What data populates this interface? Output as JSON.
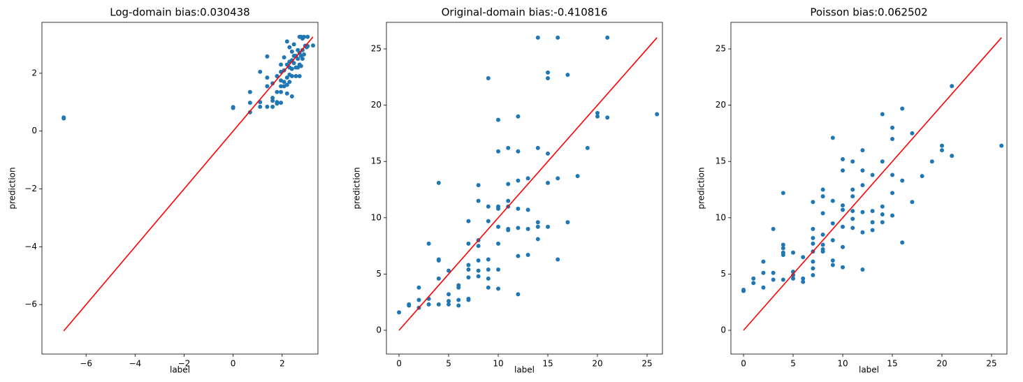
{
  "chart_data": [
    {
      "type": "scatter",
      "title": "Log-domain bias:0.030438",
      "x_label": "label",
      "y_label": "prediction",
      "color": "#1f77b4",
      "x": [
        -6.91,
        -6.91,
        0,
        0,
        0.69,
        0.69,
        0.69,
        1.1,
        1.1,
        1.1,
        1.39,
        1.39,
        1.39,
        1.39,
        1.61,
        1.61,
        1.61,
        1.61,
        1.79,
        1.79,
        1.79,
        1.79,
        1.95,
        1.95,
        1.95,
        1.95,
        1.95,
        1.95,
        2.08,
        2.08,
        2.08,
        2.08,
        2.2,
        2.2,
        2.2,
        2.2,
        2.2,
        2.3,
        2.3,
        2.3,
        2.3,
        2.3,
        2.4,
        2.4,
        2.4,
        2.4,
        2.4,
        2.48,
        2.48,
        2.48,
        2.56,
        2.56,
        2.56,
        2.64,
        2.64,
        2.64,
        2.71,
        2.71,
        2.71,
        2.71,
        2.77,
        2.77,
        2.77,
        2.83,
        2.83,
        2.83,
        2.89,
        2.89,
        2.94,
        3.0,
        3.0,
        3.04,
        3.04,
        3.26
      ],
      "values": [
        0.47,
        0.44,
        0.83,
        0.8,
        1.35,
        0.98,
        0.65,
        2.05,
        1.0,
        0.84,
        2.58,
        1.85,
        1.55,
        0.84,
        1.65,
        1.15,
        1.05,
        0.84,
        1.9,
        1.35,
        1.0,
        0.95,
        2.3,
        2.05,
        1.75,
        1.55,
        1.35,
        0.98,
        2.55,
        2.1,
        1.7,
        1.55,
        3.1,
        2.3,
        1.85,
        1.6,
        1.3,
        2.9,
        2.4,
        2.2,
        1.95,
        1.7,
        2.75,
        2.45,
        2.15,
        1.9,
        1.2,
        3.0,
        2.6,
        2.35,
        2.6,
        2.2,
        1.9,
        2.8,
        2.5,
        2.2,
        3.26,
        2.7,
        2.3,
        1.9,
        3.26,
        2.6,
        2.25,
        3.2,
        2.8,
        2.5,
        3.26,
        2.65,
        2.95,
        2.95,
        2.9,
        3.26,
        2.94,
        2.96
      ],
      "fit_line": {
        "x": [
          -6.91,
          3.26
        ],
        "values": [
          -6.91,
          3.26
        ],
        "color": "#ff0000"
      },
      "xlim": [
        -7.8,
        3.46
      ],
      "ylim": [
        -7.71,
        3.76
      ],
      "xticks": [
        {
          "value": -6,
          "label": "−6"
        },
        {
          "value": -4,
          "label": "−4"
        },
        {
          "value": -2,
          "label": "−2"
        },
        0,
        2
      ],
      "yticks": [
        {
          "value": -6,
          "label": "−6"
        },
        {
          "value": -4,
          "label": "−4"
        },
        {
          "value": -2,
          "label": "−2"
        },
        0,
        2
      ]
    },
    {
      "type": "scatter",
      "title": "Original-domain bias:-0.410816",
      "x_label": "label",
      "y_label": "prediction",
      "color": "#1f77b4",
      "x": [
        0,
        1,
        1,
        2,
        2,
        2,
        3,
        3,
        3,
        4,
        4,
        4,
        4,
        4,
        5,
        5,
        5,
        5,
        6,
        6,
        6,
        6,
        7,
        7,
        7,
        7,
        7,
        7,
        7,
        8,
        8,
        8,
        8,
        8,
        8,
        8,
        9,
        9,
        9,
        9,
        9,
        9,
        9,
        10,
        10,
        10,
        10,
        10,
        10,
        10,
        10,
        11,
        11,
        11,
        11,
        11,
        11,
        12,
        12,
        12,
        12,
        12,
        12,
        12,
        13,
        13,
        13,
        13,
        14,
        14,
        14,
        14,
        14,
        15,
        15,
        15,
        15,
        15,
        16,
        16,
        16,
        17,
        17,
        18,
        19,
        20,
        20,
        21,
        21,
        26
      ],
      "values": [
        1.6,
        2.2,
        2.3,
        3.8,
        2.7,
        2.0,
        7.7,
        2.8,
        2.3,
        13.1,
        6.3,
        6.2,
        4.6,
        2.3,
        5.3,
        3.2,
        2.6,
        2.3,
        4.0,
        3.8,
        2.7,
        2.2,
        9.7,
        7.7,
        5.8,
        5.4,
        4.7,
        2.8,
        2.7,
        12.9,
        11.5,
        8.0,
        7.5,
        6.2,
        5.3,
        4.8,
        22.4,
        11.0,
        9.7,
        6.3,
        5.4,
        4.6,
        3.8,
        18.7,
        15.9,
        11.0,
        10.8,
        9.2,
        7.7,
        5.4,
        3.7,
        16.2,
        13.0,
        11.5,
        11.0,
        9.0,
        8.9,
        19.0,
        15.9,
        13.3,
        10.8,
        9.1,
        6.6,
        3.2,
        13.5,
        10.7,
        9.0,
        6.7,
        26.0,
        16.2,
        9.6,
        9.2,
        8.1,
        22.9,
        22.4,
        15.7,
        13.1,
        9.2,
        26.0,
        13.5,
        6.3,
        22.7,
        9.6,
        13.7,
        16.2,
        19.3,
        19.0,
        26.0,
        18.9,
        19.2
      ],
      "fit_line": {
        "x": [
          0,
          26
        ],
        "values": [
          0,
          26
        ],
        "color": "#ff0000"
      },
      "xlim": [
        -1.27,
        26.55
      ],
      "ylim": [
        -2.11,
        27.36
      ],
      "xticks": [
        0,
        5,
        10,
        15,
        20,
        25
      ],
      "yticks": [
        0,
        5,
        10,
        15,
        20,
        25
      ]
    },
    {
      "type": "scatter",
      "title": "Poisson bias:0.062502",
      "x_label": "label",
      "y_label": "prediction",
      "color": "#1f77b4",
      "x": [
        0,
        0,
        1,
        1,
        2,
        2,
        2,
        3,
        3,
        3,
        4,
        4,
        4,
        4,
        4,
        4,
        5,
        5,
        5,
        5,
        6,
        6,
        6,
        7,
        7,
        7,
        7,
        7,
        7,
        7,
        7,
        8,
        8,
        8,
        8,
        8,
        8,
        8,
        9,
        9,
        9,
        9,
        9,
        9,
        10,
        10,
        10,
        10,
        10,
        10,
        10,
        11,
        11,
        11,
        11,
        11,
        11,
        12,
        12,
        12,
        12,
        12,
        12,
        13,
        13,
        13,
        13,
        14,
        14,
        14,
        14,
        14,
        15,
        15,
        15,
        15,
        15,
        16,
        16,
        16,
        17,
        17,
        18,
        19,
        20,
        20,
        21,
        21,
        26
      ],
      "values": [
        3.6,
        3.5,
        4.6,
        4.2,
        6.1,
        5.1,
        3.8,
        9.0,
        5.1,
        4.5,
        12.2,
        7.6,
        7.3,
        6.9,
        6.7,
        4.5,
        6.9,
        5.2,
        4.9,
        4.6,
        6.5,
        4.6,
        4.3,
        11.4,
        9.0,
        8.2,
        7.7,
        7.0,
        6.1,
        5.5,
        4.9,
        12.5,
        11.9,
        10.4,
        8.5,
        7.6,
        7.2,
        7.0,
        17.1,
        11.5,
        9.5,
        8.0,
        6.2,
        5.8,
        15.2,
        14.2,
        11.1,
        10.7,
        9.2,
        7.4,
        5.6,
        15.0,
        12.5,
        11.9,
        10.6,
        9.9,
        9.1,
        16.0,
        14.2,
        12.9,
        10.5,
        8.7,
        5.4,
        13.8,
        10.6,
        9.6,
        8.9,
        19.2,
        15.0,
        11.0,
        10.3,
        9.6,
        18.0,
        17.0,
        13.8,
        12.2,
        10.2,
        19.7,
        13.3,
        7.8,
        17.5,
        11.4,
        13.7,
        15.0,
        16.4,
        16.0,
        21.7,
        15.5,
        16.4
      ],
      "fit_line": {
        "x": [
          0,
          26
        ],
        "values": [
          0,
          26
        ],
        "color": "#ff0000"
      },
      "xlim": [
        -1.27,
        26.55
      ],
      "ylim": [
        -2.11,
        27.36
      ],
      "xticks": [
        0,
        5,
        10,
        15,
        20,
        25
      ],
      "yticks": [
        0,
        5,
        10,
        15,
        20,
        25
      ]
    }
  ]
}
